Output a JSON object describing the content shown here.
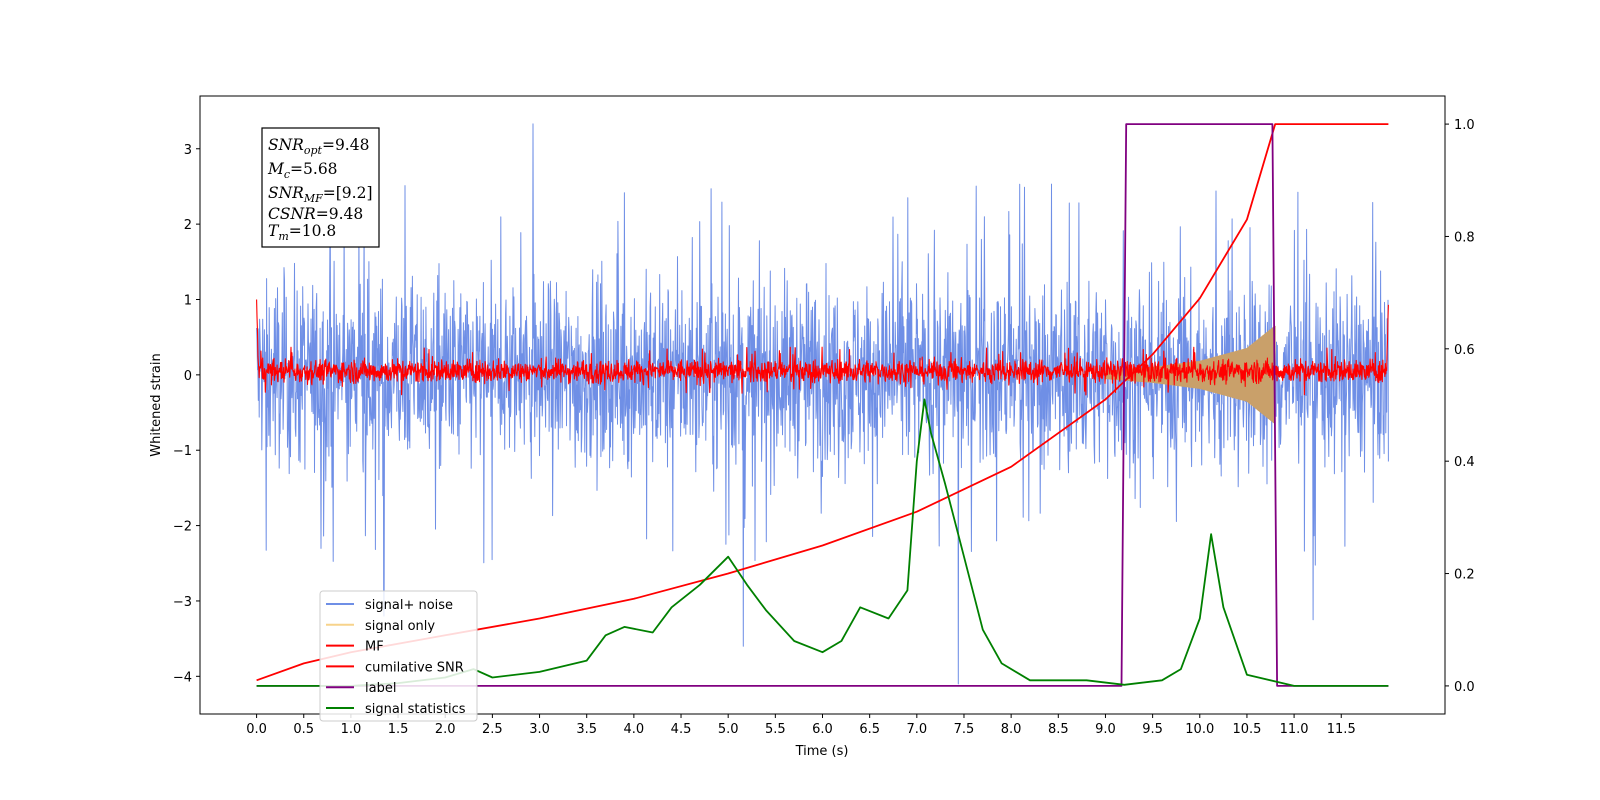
{
  "chart_data": {
    "type": "line",
    "xlabel": "Time (s)",
    "ylabel": "Whitened strain",
    "xlim": [
      -0.6,
      12.6
    ],
    "ylim": [
      -4.5,
      3.7
    ],
    "y2lim": [
      -0.05,
      1.05
    ],
    "x_ticks": [
      "0.0",
      "0.5",
      "1.0",
      "1.5",
      "2.0",
      "2.5",
      "3.0",
      "3.5",
      "4.0",
      "4.5",
      "5.0",
      "5.5",
      "6.0",
      "6.5",
      "7.0",
      "7.5",
      "8.0",
      "8.5",
      "9.0",
      "9.5",
      "10.0",
      "10.5",
      "11.0",
      "11.5"
    ],
    "y_ticks": [
      "3",
      "2",
      "1",
      "0",
      "−1",
      "−2",
      "−3",
      "−4"
    ],
    "y2_ticks": [
      "1.0",
      "0.8",
      "0.6",
      "0.4",
      "0.2",
      "0.0"
    ],
    "annotation": {
      "snr_opt": {
        "sym": "SNR",
        "sub": "opt",
        "val": "=9.48"
      },
      "mc": {
        "sym": "M",
        "sub": "c",
        "val": "=5.68"
      },
      "snr_mf": {
        "sym": "SNR",
        "sub": "MF",
        "val": "=[9.2]"
      },
      "csnr": {
        "sym": "CSNR",
        "sub": "",
        "val": "=9.48"
      },
      "tm": {
        "sym": "T",
        "sub": "m",
        "val": "=10.8"
      }
    },
    "legend": {
      "placement": "lower-left",
      "entries": [
        {
          "label": "signal+ noise",
          "color": "#6f8fe6"
        },
        {
          "label": "signal only",
          "color": "#f7d38b"
        },
        {
          "label": "MF",
          "color": "#ff0000"
        },
        {
          "label": "cumilative SNR",
          "color": "#ff0000"
        },
        {
          "label": "label",
          "color": "#800080"
        },
        {
          "label": "signal statistics",
          "color": "#008000"
        }
      ]
    },
    "series": [
      {
        "name": "signal+ noise",
        "axis": "left",
        "color": "#6f8fe6",
        "kind": "noise",
        "t_range": [
          0.0,
          12.0
        ],
        "amplitude_band": [
          -1.6,
          1.6
        ],
        "spikes": [
          [
            2.93,
            3.33
          ],
          [
            7.44,
            -4.1
          ],
          [
            5.16,
            -3.6
          ],
          [
            1.35,
            -3.2
          ],
          [
            11.2,
            -3.25
          ]
        ]
      },
      {
        "name": "signal only",
        "axis": "left",
        "color": "#c9a06a",
        "kind": "chirp",
        "t_range": [
          9.0,
          10.8
        ],
        "envelope": [
          [
            9.0,
            0.05
          ],
          [
            9.5,
            0.1
          ],
          [
            10.0,
            0.18
          ],
          [
            10.5,
            0.35
          ],
          [
            10.8,
            0.65
          ]
        ]
      },
      {
        "name": "MF",
        "axis": "left",
        "color": "#ff0000",
        "kind": "noise",
        "t_range": [
          0.0,
          12.0
        ],
        "amplitude_band": [
          -0.15,
          0.25
        ],
        "edges": [
          [
            0.0,
            1.0
          ],
          [
            12.0,
            0.93
          ]
        ]
      },
      {
        "name": "cumilative SNR",
        "axis": "right",
        "color": "#ff0000",
        "kind": "line",
        "points": [
          [
            0.0,
            0.01
          ],
          [
            0.5,
            0.04
          ],
          [
            1.0,
            0.06
          ],
          [
            2.0,
            0.09
          ],
          [
            3.0,
            0.12
          ],
          [
            4.0,
            0.155
          ],
          [
            5.0,
            0.2
          ],
          [
            6.0,
            0.25
          ],
          [
            7.0,
            0.31
          ],
          [
            8.0,
            0.39
          ],
          [
            9.0,
            0.51
          ],
          [
            9.5,
            0.59
          ],
          [
            10.0,
            0.69
          ],
          [
            10.5,
            0.83
          ],
          [
            10.8,
            1.0
          ],
          [
            12.0,
            1.0
          ]
        ]
      },
      {
        "name": "label",
        "axis": "right",
        "color": "#800080",
        "kind": "line",
        "points": [
          [
            0.0,
            0.0
          ],
          [
            9.17,
            0.0
          ],
          [
            9.22,
            1.0
          ],
          [
            10.77,
            1.0
          ],
          [
            10.82,
            0.0
          ],
          [
            12.0,
            0.0
          ]
        ]
      },
      {
        "name": "signal statistics",
        "axis": "right",
        "color": "#008000",
        "kind": "line",
        "points": [
          [
            0.0,
            0.0
          ],
          [
            0.5,
            0.0
          ],
          [
            1.0,
            0.0
          ],
          [
            1.5,
            0.005
          ],
          [
            2.0,
            0.015
          ],
          [
            2.3,
            0.03
          ],
          [
            2.5,
            0.015
          ],
          [
            3.0,
            0.025
          ],
          [
            3.5,
            0.045
          ],
          [
            3.7,
            0.09
          ],
          [
            3.9,
            0.105
          ],
          [
            4.2,
            0.095
          ],
          [
            4.4,
            0.14
          ],
          [
            4.7,
            0.18
          ],
          [
            5.0,
            0.23
          ],
          [
            5.2,
            0.18
          ],
          [
            5.4,
            0.135
          ],
          [
            5.7,
            0.08
          ],
          [
            6.0,
            0.06
          ],
          [
            6.2,
            0.08
          ],
          [
            6.4,
            0.14
          ],
          [
            6.7,
            0.12
          ],
          [
            6.9,
            0.17
          ],
          [
            7.0,
            0.4
          ],
          [
            7.08,
            0.51
          ],
          [
            7.15,
            0.45
          ],
          [
            7.3,
            0.36
          ],
          [
            7.5,
            0.23
          ],
          [
            7.7,
            0.1
          ],
          [
            7.9,
            0.04
          ],
          [
            8.2,
            0.01
          ],
          [
            8.8,
            0.01
          ],
          [
            9.2,
            0.002
          ],
          [
            9.6,
            0.01
          ],
          [
            9.8,
            0.03
          ],
          [
            10.0,
            0.12
          ],
          [
            10.12,
            0.27
          ],
          [
            10.25,
            0.14
          ],
          [
            10.5,
            0.02
          ],
          [
            11.0,
            0.0
          ],
          [
            12.0,
            0.0
          ]
        ]
      }
    ],
    "grid": false
  }
}
